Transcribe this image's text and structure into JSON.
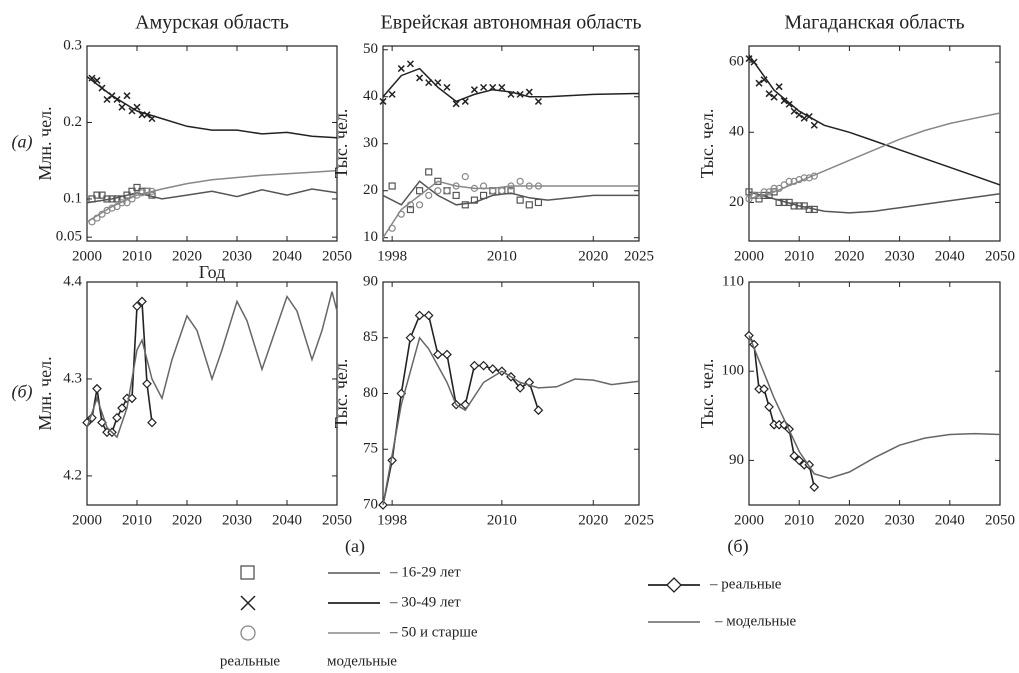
{
  "chart_data": [
    {
      "type": "line",
      "title": "Амурская область",
      "row_label": "(а)",
      "ylabel": "Млн. чел.",
      "xlabel": "Год",
      "xlim": [
        2000,
        2050
      ],
      "xticks": [
        2000,
        2010,
        2020,
        2030,
        2040,
        2050
      ],
      "ylim": [
        0.045,
        0.3
      ],
      "yticks": [
        0.05,
        0.1,
        0.2,
        0.3
      ],
      "series": [
        {
          "color": "#555555",
          "marker": "square",
          "line": false,
          "x": [
            2001,
            2002,
            2003,
            2004,
            2005,
            2006,
            2007,
            2008,
            2009,
            2010,
            2011,
            2012,
            2013
          ],
          "values": [
            0.1,
            0.105,
            0.105,
            0.1,
            0.1,
            0.1,
            0.1,
            0.105,
            0.11,
            0.115,
            0.11,
            0.11,
            0.105
          ]
        },
        {
          "color": "#555555",
          "line": true,
          "x": [
            2000,
            2005,
            2010,
            2015,
            2020,
            2025,
            2030,
            2035,
            2040,
            2045,
            2050
          ],
          "values": [
            0.095,
            0.1,
            0.108,
            0.1,
            0.105,
            0.11,
            0.103,
            0.112,
            0.105,
            0.113,
            0.108
          ]
        },
        {
          "color": "#222222",
          "marker": "cross",
          "line": false,
          "x": [
            2001,
            2002,
            2003,
            2004,
            2005,
            2006,
            2007,
            2008,
            2009,
            2010,
            2011,
            2012,
            2013
          ],
          "values": [
            0.258,
            0.255,
            0.245,
            0.23,
            0.235,
            0.23,
            0.22,
            0.235,
            0.215,
            0.22,
            0.21,
            0.21,
            0.205
          ]
        },
        {
          "color": "#222222",
          "line": true,
          "x": [
            2000,
            2005,
            2010,
            2015,
            2020,
            2025,
            2030,
            2035,
            2040,
            2045,
            2050
          ],
          "values": [
            0.26,
            0.235,
            0.215,
            0.205,
            0.195,
            0.19,
            0.19,
            0.185,
            0.187,
            0.182,
            0.18
          ]
        },
        {
          "color": "#888888",
          "marker": "circle",
          "line": false,
          "x": [
            2001,
            2002,
            2003,
            2004,
            2005,
            2006,
            2007,
            2008,
            2009,
            2010,
            2011,
            2012,
            2013
          ],
          "values": [
            0.07,
            0.075,
            0.08,
            0.085,
            0.088,
            0.09,
            0.095,
            0.095,
            0.1,
            0.105,
            0.108,
            0.11,
            0.11
          ]
        },
        {
          "color": "#888888",
          "line": true,
          "x": [
            2000,
            2005,
            2010,
            2015,
            2020,
            2025,
            2030,
            2035,
            2040,
            2045,
            2050
          ],
          "values": [
            0.07,
            0.09,
            0.105,
            0.113,
            0.12,
            0.125,
            0.128,
            0.131,
            0.133,
            0.135,
            0.137
          ]
        }
      ]
    },
    {
      "type": "line",
      "title": "Еврейская автономная область",
      "ylabel": "Тыс. чел.",
      "xlim": [
        1997,
        2025
      ],
      "xticks": [
        1998,
        2010,
        2020,
        2025
      ],
      "ylim": [
        9.3,
        50.8
      ],
      "yticks": [
        10,
        20,
        30,
        40,
        50
      ],
      "series": [
        {
          "color": "#555555",
          "marker": "square",
          "line": false,
          "x": [
            1998,
            2000,
            2001,
            2002,
            2003,
            2004,
            2005,
            2006,
            2007,
            2008,
            2009,
            2010,
            2011,
            2012,
            2013,
            2014
          ],
          "values": [
            21,
            16,
            20,
            24,
            22,
            20,
            19,
            17,
            18,
            19,
            20,
            20,
            20,
            18,
            17,
            17.5
          ]
        },
        {
          "color": "#555555",
          "line": true,
          "x": [
            1997,
            1999,
            2001,
            2003,
            2005,
            2007,
            2009,
            2011,
            2013,
            2015,
            2020,
            2025
          ],
          "values": [
            19,
            17,
            22,
            19,
            17,
            17.5,
            19,
            19.5,
            18.5,
            18,
            19,
            19
          ]
        },
        {
          "color": "#222222",
          "marker": "cross",
          "line": false,
          "x": [
            1997,
            1998,
            1999,
            2000,
            2001,
            2002,
            2003,
            2004,
            2005,
            2006,
            2007,
            2008,
            2009,
            2010,
            2011,
            2012,
            2013,
            2014
          ],
          "values": [
            39,
            40.5,
            46,
            47,
            44,
            43,
            43,
            42,
            38.5,
            39,
            41.5,
            42,
            42,
            42,
            40.5,
            40.5,
            41,
            39
          ]
        },
        {
          "color": "#222222",
          "line": true,
          "x": [
            1997,
            1999,
            2001,
            2003,
            2005,
            2007,
            2009,
            2011,
            2013,
            2015,
            2020,
            2025
          ],
          "values": [
            40,
            44.5,
            46,
            42,
            39,
            40.5,
            41.5,
            41,
            40,
            40,
            40.5,
            40.7
          ]
        },
        {
          "color": "#888888",
          "marker": "circle",
          "line": false,
          "x": [
            1998,
            1999,
            2000,
            2001,
            2002,
            2003,
            2004,
            2005,
            2006,
            2007,
            2008,
            2009,
            2010,
            2011,
            2012,
            2013,
            2014
          ],
          "values": [
            12,
            15,
            17,
            17,
            19,
            20,
            20,
            21,
            23,
            20.5,
            21,
            20,
            20,
            21,
            22,
            21,
            21
          ]
        },
        {
          "color": "#888888",
          "line": true,
          "x": [
            1997,
            1999,
            2001,
            2003,
            2005,
            2007,
            2009,
            2011,
            2015,
            2020,
            2025
          ],
          "values": [
            10,
            16,
            19,
            22,
            21,
            20.5,
            20.5,
            21,
            21,
            21,
            21
          ]
        }
      ]
    },
    {
      "type": "line",
      "title": "Магаданская область",
      "ylabel": "Тыс. чел.",
      "xlim": [
        2000,
        2050
      ],
      "xticks": [
        2000,
        2010,
        2020,
        2030,
        2040,
        2050
      ],
      "ylim": [
        9,
        64.6
      ],
      "yticks": [
        20,
        40,
        60
      ],
      "series": [
        {
          "color": "#555555",
          "marker": "square",
          "line": false,
          "x": [
            2000,
            2001,
            2002,
            2003,
            2004,
            2005,
            2006,
            2007,
            2008,
            2009,
            2010,
            2011,
            2012,
            2013
          ],
          "values": [
            23,
            22,
            21,
            22,
            22,
            23,
            20,
            20,
            20,
            19,
            19,
            19,
            18,
            18
          ]
        },
        {
          "color": "#555555",
          "line": true,
          "x": [
            2000,
            2005,
            2010,
            2015,
            2020,
            2025,
            2030,
            2035,
            2040,
            2045,
            2050
          ],
          "values": [
            23,
            21,
            19,
            17.5,
            17,
            17.5,
            18.5,
            19.5,
            20.5,
            21.5,
            22.5
          ]
        },
        {
          "color": "#222222",
          "marker": "cross",
          "line": false,
          "x": [
            2000,
            2001,
            2002,
            2003,
            2004,
            2005,
            2006,
            2007,
            2008,
            2009,
            2010,
            2011,
            2012,
            2013
          ],
          "values": [
            61,
            60,
            54,
            55,
            51,
            50,
            53,
            49,
            48,
            46,
            45,
            44,
            44.5,
            42
          ]
        },
        {
          "color": "#222222",
          "line": true,
          "x": [
            2000,
            2005,
            2010,
            2015,
            2020,
            2025,
            2030,
            2035,
            2040,
            2045,
            2050
          ],
          "values": [
            62,
            52,
            46,
            42,
            40,
            37.5,
            35,
            32.5,
            30,
            27.5,
            25
          ]
        },
        {
          "color": "#888888",
          "marker": "circle",
          "line": false,
          "x": [
            2000,
            2001,
            2002,
            2003,
            2004,
            2005,
            2006,
            2007,
            2008,
            2009,
            2010,
            2011,
            2012,
            2013
          ],
          "values": [
            21,
            22,
            22,
            23,
            23,
            24,
            24,
            25,
            26,
            26,
            26.5,
            27,
            27,
            27.5
          ]
        },
        {
          "color": "#888888",
          "line": true,
          "x": [
            2000,
            2005,
            2010,
            2015,
            2020,
            2025,
            2030,
            2035,
            2040,
            2045,
            2050
          ],
          "values": [
            21,
            23,
            26,
            29,
            32,
            35,
            38,
            40.5,
            42.5,
            44,
            45.5
          ]
        }
      ]
    },
    {
      "type": "line",
      "row_label": "(б)",
      "ylabel": "Млн. чел.",
      "xlim": [
        2000,
        2050
      ],
      "xticks": [
        2000,
        2010,
        2020,
        2030,
        2040,
        2050
      ],
      "ylim": [
        4.17,
        4.4
      ],
      "yticks": [
        4.2,
        4.3,
        4.4
      ],
      "series": [
        {
          "color": "#222222",
          "marker": "diamond",
          "line": true,
          "x": [
            2000,
            2001,
            2002,
            2003,
            2004,
            2005,
            2006,
            2007,
            2008,
            2009,
            2010,
            2011,
            2012,
            2013
          ],
          "values": [
            4.255,
            4.26,
            4.29,
            4.255,
            4.245,
            4.245,
            4.26,
            4.27,
            4.28,
            4.28,
            4.375,
            4.38,
            4.295,
            4.255
          ]
        },
        {
          "color": "#666666",
          "line": true,
          "x": [
            2000,
            2002,
            2004,
            2006,
            2008,
            2010,
            2011,
            2013,
            2015,
            2017,
            2020,
            2022,
            2025,
            2027,
            2030,
            2032,
            2035,
            2037,
            2040,
            2042,
            2045,
            2047,
            2049,
            2050
          ],
          "values": [
            4.25,
            4.28,
            4.25,
            4.24,
            4.27,
            4.33,
            4.34,
            4.3,
            4.28,
            4.32,
            4.365,
            4.35,
            4.3,
            4.33,
            4.38,
            4.36,
            4.31,
            4.34,
            4.385,
            4.37,
            4.32,
            4.35,
            4.39,
            4.37
          ]
        }
      ]
    },
    {
      "type": "line",
      "ylabel": "Тыс. чел.",
      "xlim": [
        1997,
        2025
      ],
      "xticks": [
        1998,
        2010,
        2020,
        2025
      ],
      "ylim": [
        70,
        90
      ],
      "yticks": [
        70,
        75,
        80,
        85,
        90
      ],
      "series": [
        {
          "color": "#222222",
          "marker": "diamond",
          "line": true,
          "x": [
            1997,
            1998,
            1999,
            2000,
            2001,
            2002,
            2003,
            2004,
            2005,
            2006,
            2007,
            2008,
            2009,
            2010,
            2011,
            2012,
            2013,
            2014
          ],
          "values": [
            70,
            74,
            80,
            85,
            87,
            87,
            83.5,
            83.5,
            79,
            79,
            82.5,
            82.5,
            82.2,
            82,
            81.5,
            80.5,
            81,
            78.5
          ]
        },
        {
          "color": "#666666",
          "line": true,
          "x": [
            1997,
            1999,
            2001,
            2002,
            2004,
            2005,
            2006,
            2008,
            2010,
            2012,
            2014,
            2016,
            2018,
            2020,
            2022,
            2025
          ],
          "values": [
            70,
            79,
            85,
            84,
            81,
            79,
            78.5,
            81,
            82,
            81,
            80.5,
            80.6,
            81.3,
            81.2,
            80.8,
            81.1
          ]
        }
      ]
    },
    {
      "type": "line",
      "ylabel": "Тыс. чел.",
      "xlim": [
        2000,
        2050
      ],
      "xticks": [
        2000,
        2010,
        2020,
        2030,
        2040,
        2050
      ],
      "ylim": [
        85,
        110
      ],
      "yticks": [
        90,
        100,
        110
      ],
      "series": [
        {
          "color": "#222222",
          "marker": "diamond",
          "line": true,
          "x": [
            2000,
            2001,
            2002,
            2003,
            2004,
            2005,
            2006,
            2007,
            2008,
            2009,
            2010,
            2011,
            2012,
            2013
          ],
          "values": [
            104,
            103,
            98,
            98,
            96,
            94,
            94,
            94,
            93.5,
            90.5,
            90,
            89.5,
            89.5,
            87
          ]
        },
        {
          "color": "#666666",
          "line": true,
          "x": [
            2000,
            2005,
            2010,
            2013,
            2016,
            2020,
            2025,
            2030,
            2035,
            2040,
            2045,
            2050
          ],
          "values": [
            104,
            97,
            91,
            88.5,
            88,
            88.7,
            90.3,
            91.7,
            92.5,
            92.9,
            93,
            92.9
          ]
        }
      ]
    }
  ],
  "legend": {
    "caption_a": "(а)",
    "caption_b": "(б)",
    "entries_a": [
      "– 16-29 лет",
      "– 30-49 лет",
      "– 50 и старше"
    ],
    "marker_caption": "реальные",
    "line_caption": "модельные",
    "entries_b": [
      "– реальные",
      "– модельные"
    ]
  }
}
